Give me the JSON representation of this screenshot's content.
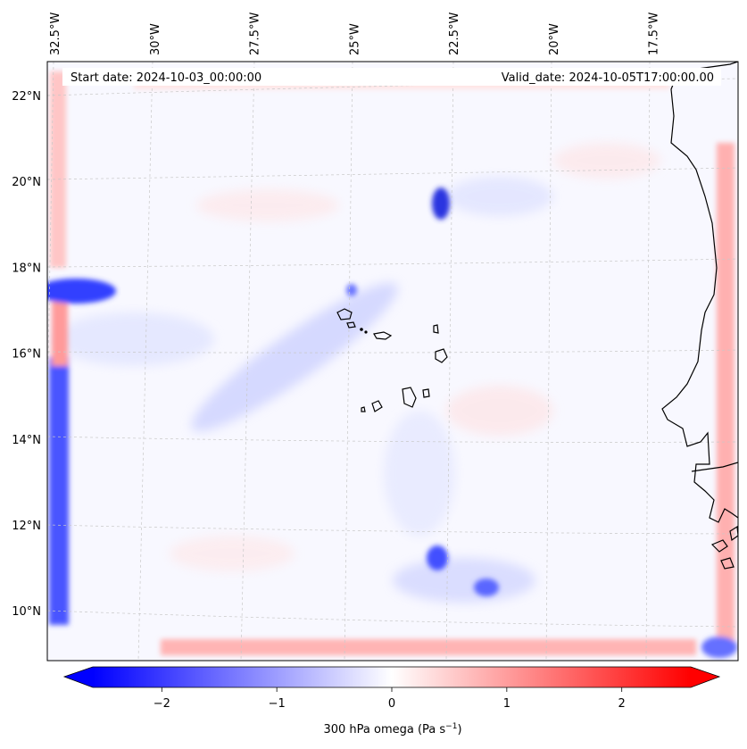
{
  "header": {
    "start_label": "Start date: 2024-10-03_00:00:00",
    "valid_label": "Valid_date: 2024-10-05T17:00:00.00"
  },
  "axes": {
    "lon_labels": [
      {
        "text": "32.5°W",
        "lon": -32.5
      },
      {
        "text": "30°W",
        "lon": -30
      },
      {
        "text": "27.5°W",
        "lon": -27.5
      },
      {
        "text": "25°W",
        "lon": -25
      },
      {
        "text": "22.5°W",
        "lon": -22.5
      },
      {
        "text": "20°W",
        "lon": -20
      },
      {
        "text": "17.5°W",
        "lon": -17.5
      }
    ],
    "lat_labels": [
      {
        "text": "22°N",
        "lat": 22
      },
      {
        "text": "20°N",
        "lat": 20
      },
      {
        "text": "18°N",
        "lat": 18
      },
      {
        "text": "16°N",
        "lat": 16
      },
      {
        "text": "14°N",
        "lat": 14
      },
      {
        "text": "12°N",
        "lat": 12
      },
      {
        "text": "10°N",
        "lat": 10
      }
    ]
  },
  "colorbar": {
    "label": "300 hPa omega (Pa s",
    "label_sup": "−1",
    "label_end": ")",
    "min": -2.6,
    "max": 2.6,
    "ticks": [
      {
        "value": -2,
        "text": "−2"
      },
      {
        "value": -1,
        "text": "−1"
      },
      {
        "value": 0,
        "text": "0"
      },
      {
        "value": 1,
        "text": "1"
      },
      {
        "value": 2,
        "text": "2"
      }
    ],
    "colors": {
      "negative": "#0000ff",
      "zero": "#ffffff",
      "positive": "#ff0000"
    }
  },
  "chart_data": {
    "type": "heatmap",
    "variable": "300 hPa omega",
    "units": "Pa s^-1",
    "start_date": "2024-10-03_00:00:00",
    "valid_date": "2024-10-05T17:00:00.00",
    "lon_range": [
      -33.0,
      -15.4
    ],
    "lat_range": [
      8.8,
      22.8
    ],
    "color_range": [
      -2.6,
      2.6
    ],
    "colormap": "bwr",
    "features": [
      {
        "kind": "strong ascent",
        "lon": -22.4,
        "lat": 19.4,
        "value": -1.8
      },
      {
        "kind": "strong ascent",
        "lon": -32.4,
        "lat": 17.3,
        "value": -1.6
      },
      {
        "kind": "strong ascent",
        "lon": -22.2,
        "lat": 11.2,
        "value": -1.2
      },
      {
        "kind": "strong ascent",
        "lon": -21.0,
        "lat": 10.5,
        "value": -1.0
      },
      {
        "kind": "ascent band",
        "lon": -26.5,
        "lat": 15.5,
        "value": -0.6
      },
      {
        "kind": "boundary ascent",
        "lon": -32.6,
        "lat": 12.0,
        "value": -1.8
      },
      {
        "kind": "boundary descent",
        "lon": -15.6,
        "lat": 16.0,
        "value": 0.8
      },
      {
        "kind": "boundary descent",
        "lon": -24.0,
        "lat": 9.1,
        "value": 0.6
      }
    ]
  }
}
